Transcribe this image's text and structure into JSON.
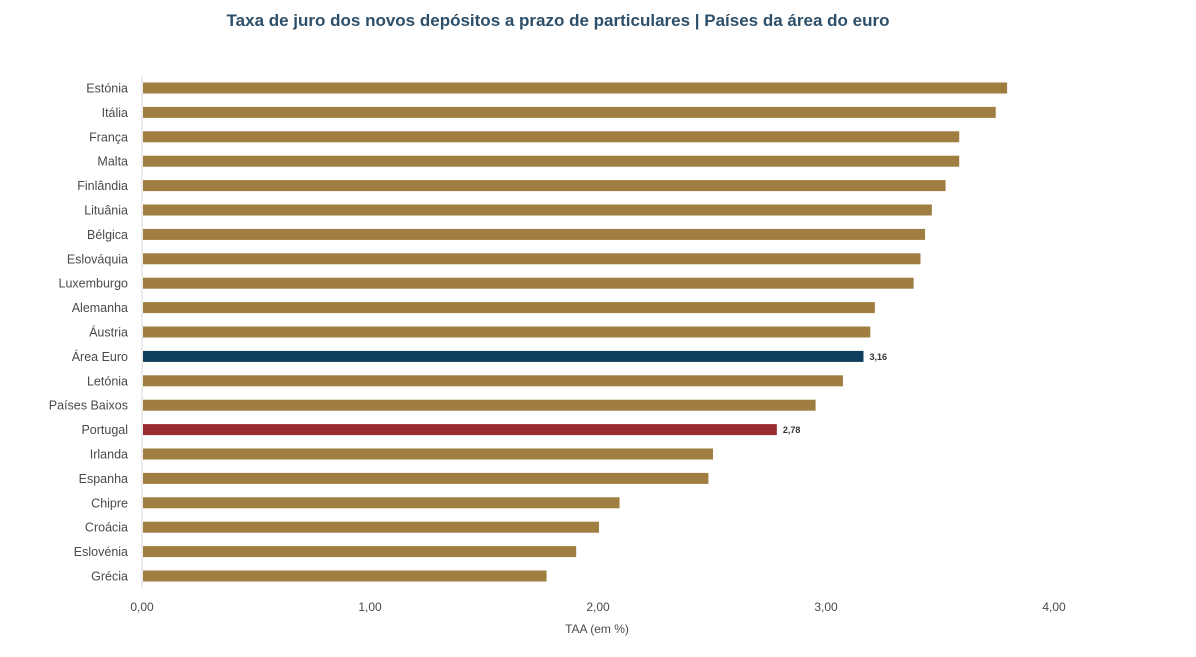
{
  "chart_data": {
    "type": "bar",
    "orientation": "horizontal",
    "title": "Taxa de juro dos novos depósitos a prazo de particulares | Países da área do euro",
    "xlabel": "TAA (em %)",
    "ylabel": "",
    "xlim": [
      0,
      4
    ],
    "x_ticks": [
      "0,00",
      "1,00",
      "2,00",
      "3,00",
      "4,00"
    ],
    "grid": false,
    "categories": [
      "Estónia",
      "Itália",
      "França",
      "Malta",
      "Finlândia",
      "Lituânia",
      "Bélgica",
      "Eslováquia",
      "Luxemburgo",
      "Alemanha",
      "Áustria",
      "Área Euro",
      "Letónia",
      "Países Baixos",
      "Portugal",
      "Irlanda",
      "Espanha",
      "Chipre",
      "Croácia",
      "Eslovénia",
      "Grécia"
    ],
    "values": [
      3.79,
      3.74,
      3.58,
      3.58,
      3.52,
      3.46,
      3.43,
      3.41,
      3.38,
      3.21,
      3.19,
      3.16,
      3.07,
      2.95,
      2.78,
      2.5,
      2.48,
      2.09,
      2.0,
      1.9,
      1.77
    ],
    "data_labels": [
      {
        "category": "Área Euro",
        "label": "3,16"
      },
      {
        "category": "Portugal",
        "label": "2,78"
      }
    ],
    "colors": {
      "default": "#a07e42",
      "Área Euro": "#0f3d5c",
      "Portugal": "#9a2b33"
    }
  }
}
